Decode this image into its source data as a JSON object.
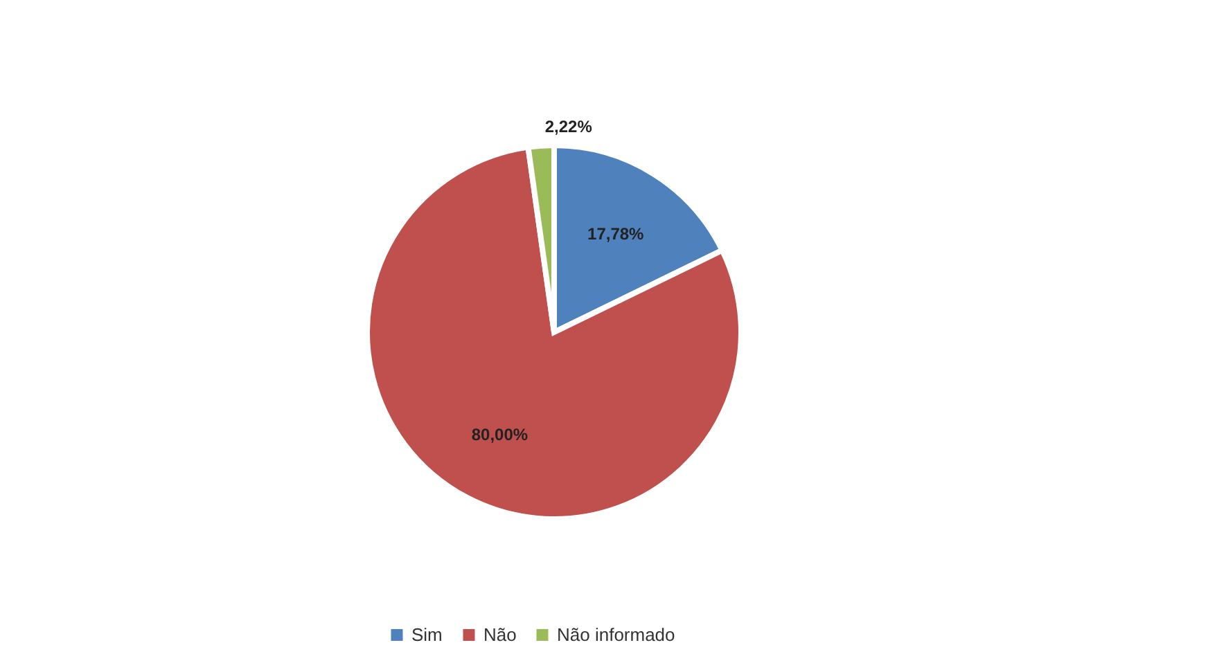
{
  "chart_data": {
    "type": "pie",
    "categories": [
      "Sim",
      "Não",
      "Não informado"
    ],
    "values": [
      17.78,
      80.0,
      2.22
    ],
    "colors": [
      "#4f81bd",
      "#c0504d",
      "#9bbb59"
    ],
    "value_labels": [
      "17,78%",
      "80,00%",
      "2,22%"
    ],
    "legend": "bottom"
  }
}
